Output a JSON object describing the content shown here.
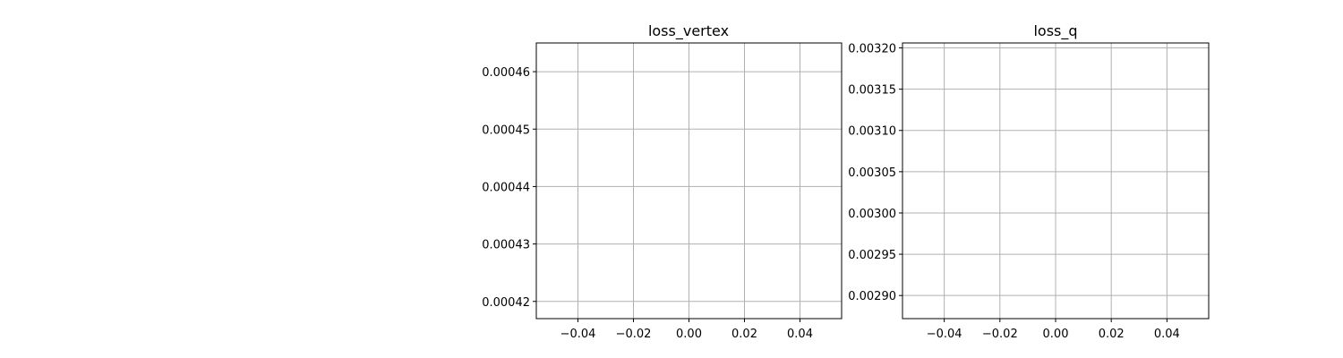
{
  "chart_data": [
    {
      "type": "line",
      "title": "loss_vertex",
      "xlabel": "",
      "ylabel": "",
      "xlim": [
        -0.055,
        0.055
      ],
      "ylim": [
        0.000417,
        0.000465
      ],
      "xticks": [
        -0.04,
        -0.02,
        0.0,
        0.02,
        0.04
      ],
      "xtick_labels": [
        "−0.04",
        "−0.02",
        "0.00",
        "0.02",
        "0.04"
      ],
      "yticks": [
        0.00042,
        0.00043,
        0.00044,
        0.00045,
        0.00046
      ],
      "ytick_labels": [
        "0.00042",
        "0.00043",
        "0.00044",
        "0.00045",
        "0.00046"
      ],
      "grid": true,
      "series": []
    },
    {
      "type": "line",
      "title": "loss_q",
      "xlabel": "",
      "ylabel": "",
      "xlim": [
        -0.055,
        0.055
      ],
      "ylim": [
        0.002872,
        0.003206
      ],
      "xticks": [
        -0.04,
        -0.02,
        0.0,
        0.02,
        0.04
      ],
      "xtick_labels": [
        "−0.04",
        "−0.02",
        "0.00",
        "0.02",
        "0.04"
      ],
      "yticks": [
        0.0029,
        0.00295,
        0.003,
        0.00305,
        0.0031,
        0.00315,
        0.0032
      ],
      "ytick_labels": [
        "0.00290",
        "0.00295",
        "0.00300",
        "0.00305",
        "0.00310",
        "0.00315",
        "0.00320"
      ],
      "grid": true,
      "series": []
    }
  ],
  "colors": {
    "grid": "#b0b0b0",
    "axes": "#000000",
    "background": "#ffffff"
  }
}
